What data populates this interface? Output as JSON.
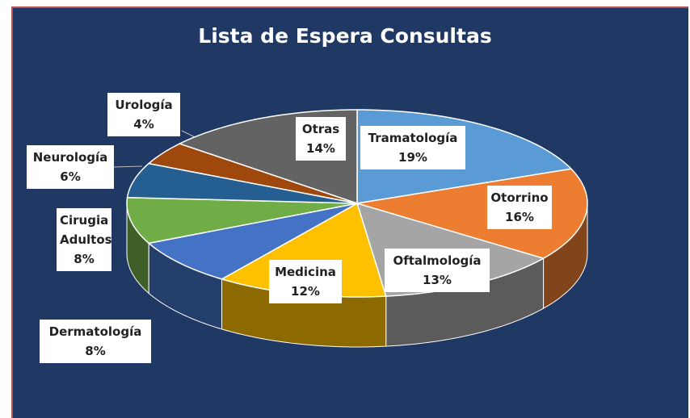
{
  "chart_data": {
    "type": "pie3d",
    "title": "Lista de Espera Consultas",
    "categories": [
      "Tramatología",
      "Otorrino",
      "Oftalmología",
      "Medicina",
      "Dermatología",
      "Cirugia Adultos",
      "Neurología",
      "Urología",
      "Otras"
    ],
    "values": [
      19,
      16,
      13,
      12,
      8,
      8,
      6,
      4,
      14
    ],
    "value_labels": [
      "19%",
      "16%",
      "13%",
      "12%",
      "8%",
      "8%",
      "6%",
      "4%",
      "14%"
    ],
    "colors": [
      "#5b9bd5",
      "#ed7d31",
      "#a5a5a5",
      "#ffc000",
      "#4472c4",
      "#70ad47",
      "#255e91",
      "#9e480e",
      "#636363"
    ]
  }
}
